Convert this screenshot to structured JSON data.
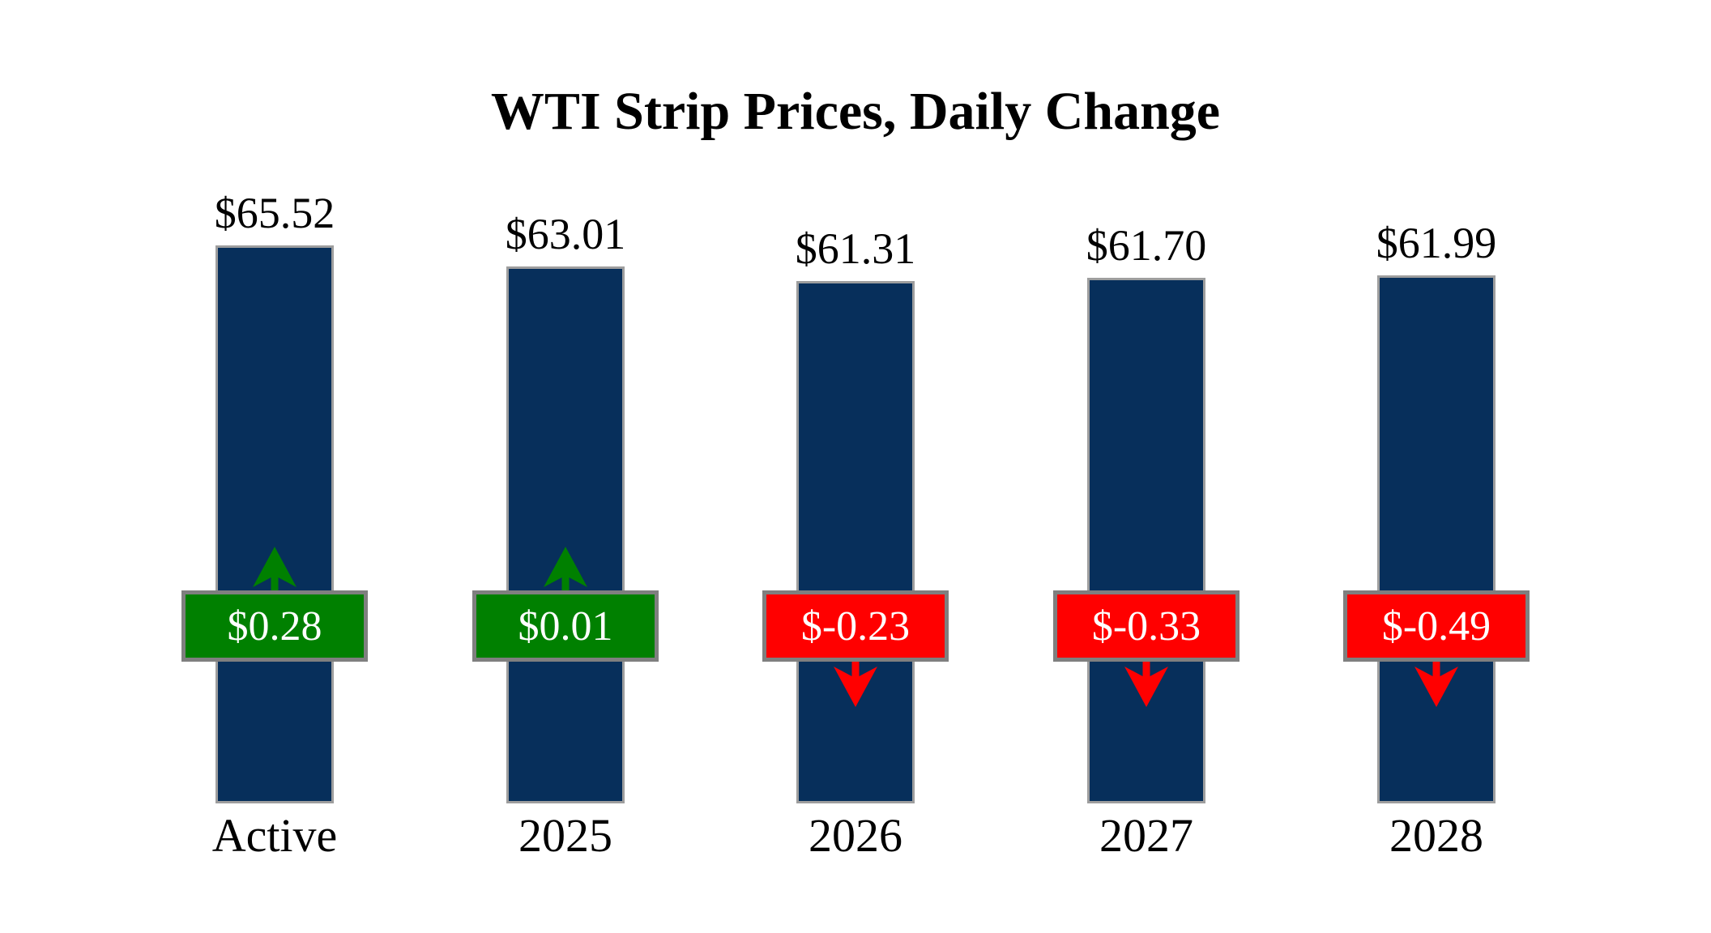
{
  "title": "WTI Strip Prices, Daily Change",
  "chart_data": {
    "type": "bar",
    "title": "WTI Strip Prices, Daily Change",
    "categories": [
      "Active",
      "2025",
      "2026",
      "2027",
      "2028"
    ],
    "series": [
      {
        "name": "strip-price",
        "values": [
          65.52,
          63.01,
          61.31,
          61.7,
          61.99
        ],
        "labels": [
          "$65.52",
          "$63.01",
          "$61.31",
          "$61.70",
          "$61.99"
        ]
      },
      {
        "name": "daily-change",
        "values": [
          0.28,
          0.01,
          -0.23,
          -0.33,
          -0.49
        ],
        "labels": [
          "$0.28",
          "$0.01",
          "$-0.23",
          "$-0.33",
          "$-0.49"
        ]
      }
    ],
    "ylim": [
      0,
      65.52
    ],
    "grid": false,
    "legend": "none",
    "colors": {
      "bar": "#072F5B",
      "bar_border": "#9E9E9E",
      "positive": "#008000",
      "negative": "#FF0000",
      "badge_border": "#7F7F7F",
      "badge_text": "#FFFFFF",
      "text": "#000000"
    }
  }
}
